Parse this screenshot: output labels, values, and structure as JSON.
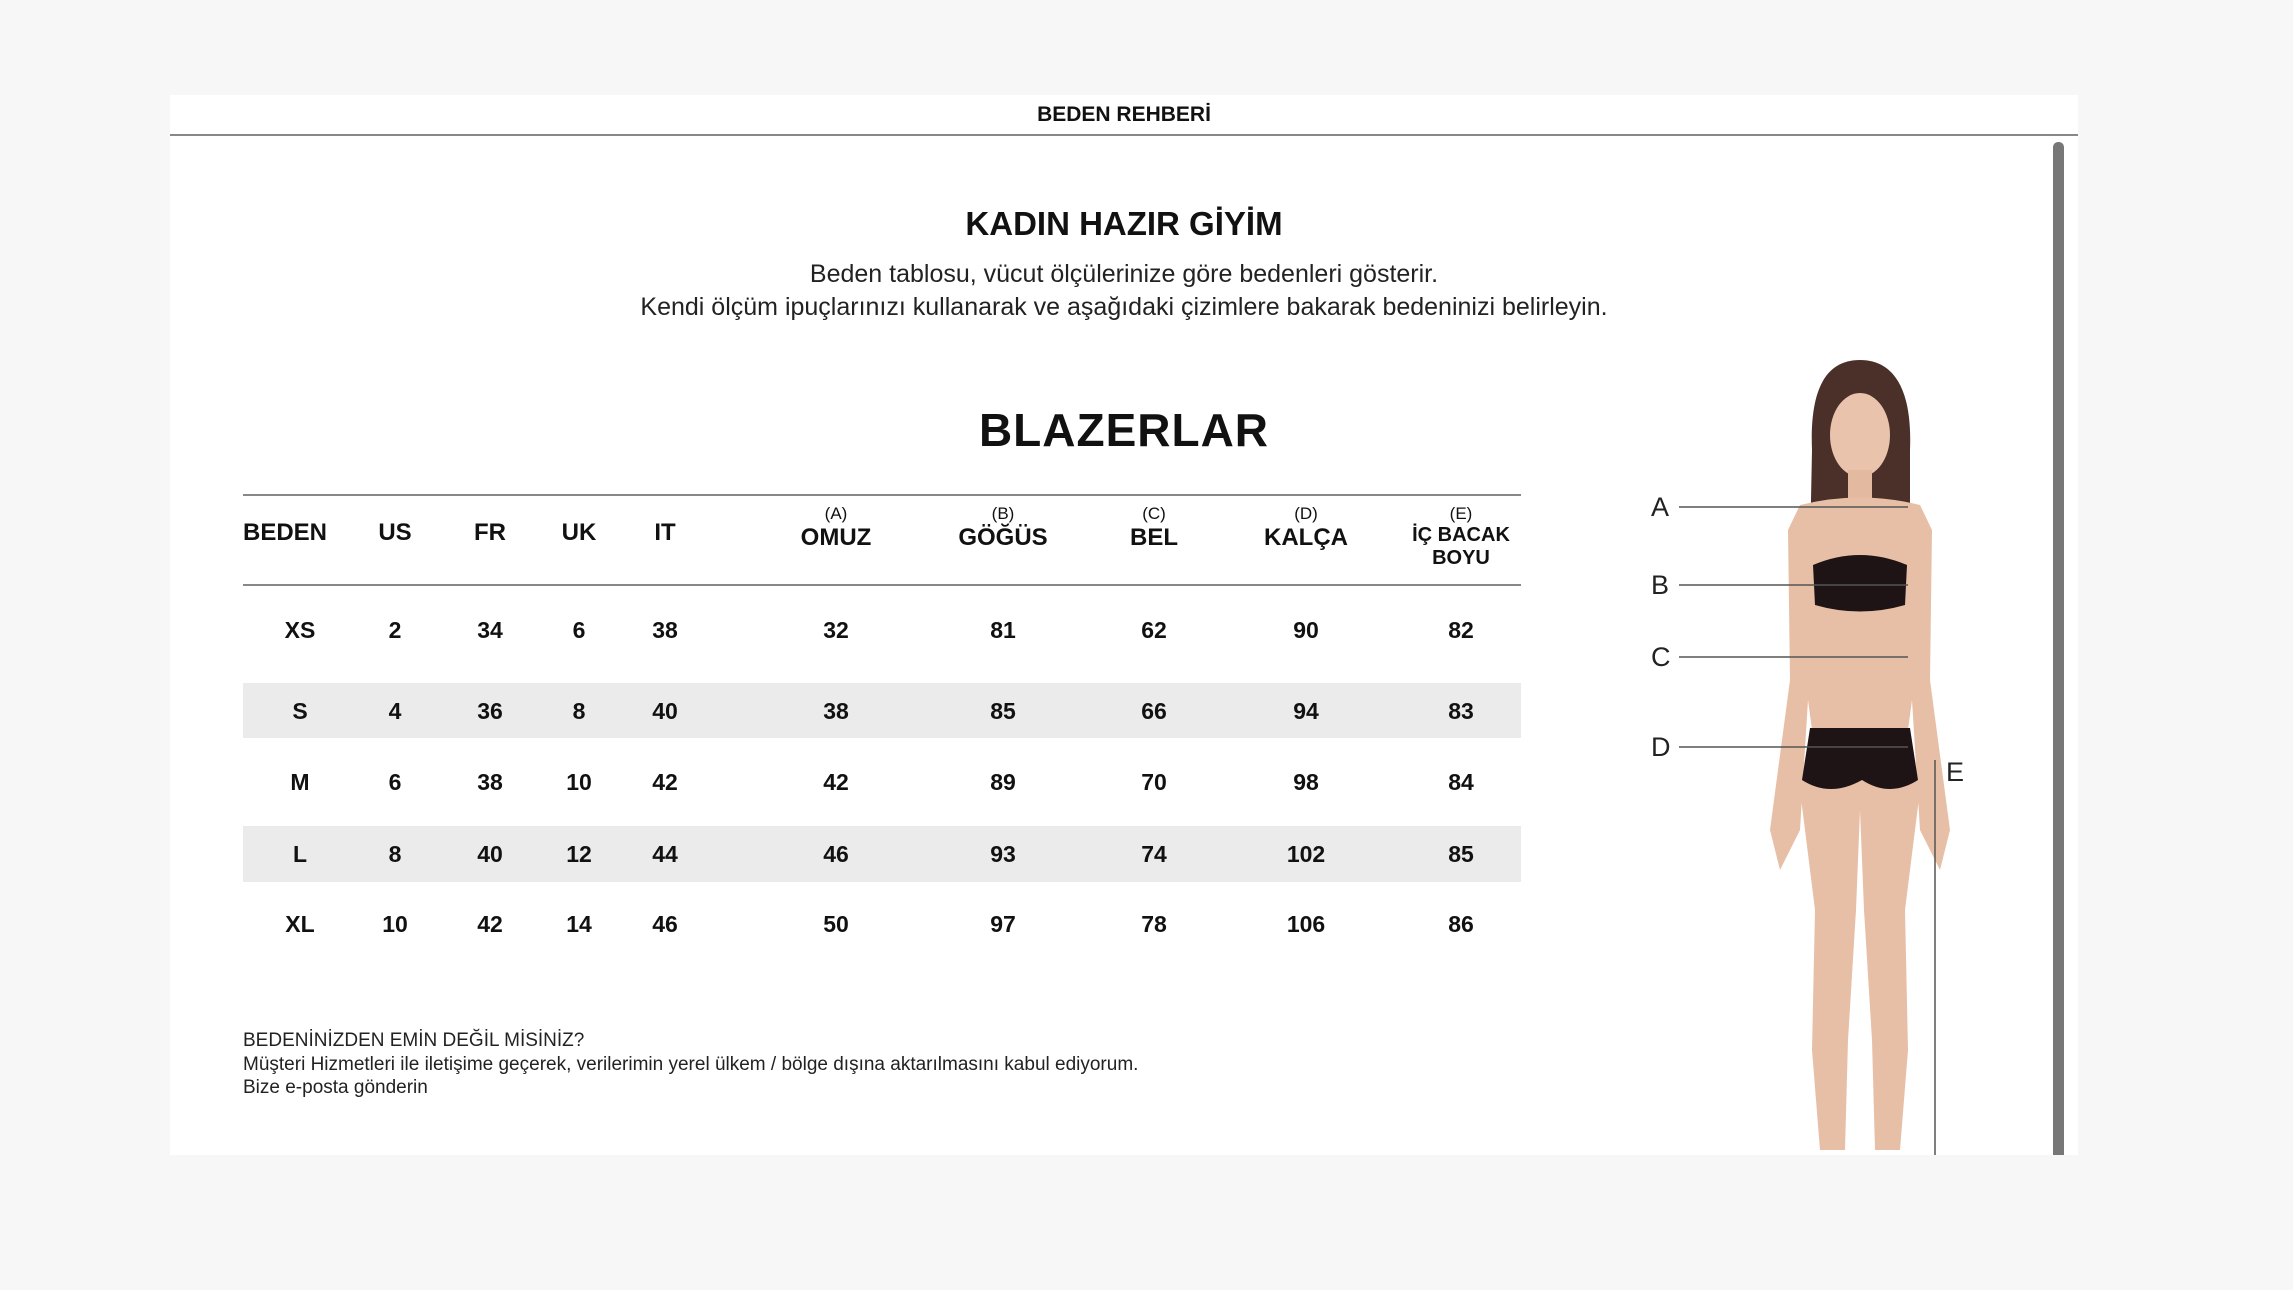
{
  "header": {
    "title": "BEDEN REHBERİ"
  },
  "main": {
    "title": "KADIN HAZIR GİYİM",
    "subtitle_lines": [
      "Beden tablosu, vücut ölçülerinize göre bedenleri gösterir.",
      "Kendi ölçüm ipuçlarınızı kullanarak ve aşağıdaki çizimlere bakarak bedeninizi belirleyin."
    ],
    "category": "BLAZERLAR",
    "table": {
      "columns": [
        {
          "label": "",
          "name": "BEDEN"
        },
        {
          "label": "",
          "name": "US"
        },
        {
          "label": "",
          "name": "FR"
        },
        {
          "label": "",
          "name": "UK"
        },
        {
          "label": "",
          "name": "IT"
        },
        {
          "label": "(A)",
          "name": "OMUZ"
        },
        {
          "label": "(B)",
          "name": "GÖĞÜS"
        },
        {
          "label": "(C)",
          "name": "BEL"
        },
        {
          "label": "(D)",
          "name": "KALÇA"
        },
        {
          "label": "(E)",
          "name": "İÇ BACAK BOYU"
        }
      ],
      "rows": [
        [
          "XS",
          "2",
          "34",
          "6",
          "38",
          "32",
          "81",
          "62",
          "90",
          "82"
        ],
        [
          "S",
          "4",
          "36",
          "8",
          "40",
          "38",
          "85",
          "66",
          "94",
          "83"
        ],
        [
          "M",
          "6",
          "38",
          "10",
          "42",
          "42",
          "89",
          "70",
          "98",
          "84"
        ],
        [
          "L",
          "8",
          "40",
          "12",
          "44",
          "46",
          "93",
          "74",
          "102",
          "85"
        ],
        [
          "XL",
          "10",
          "42",
          "14",
          "46",
          "50",
          "97",
          "78",
          "106",
          "86"
        ]
      ]
    },
    "figure": {
      "labels": [
        "A",
        "B",
        "C",
        "D",
        "E"
      ]
    },
    "footer": {
      "question": "BEDENİNİZDEN EMİN DEĞİL MİSİNİZ?",
      "consent": "Müşteri Hizmetleri ile iletişime geçerek, verilerimin yerel ülkem / bölge dışına aktarılmasını kabul ediyorum.",
      "email_link": "Bize e-posta gönderin"
    }
  }
}
